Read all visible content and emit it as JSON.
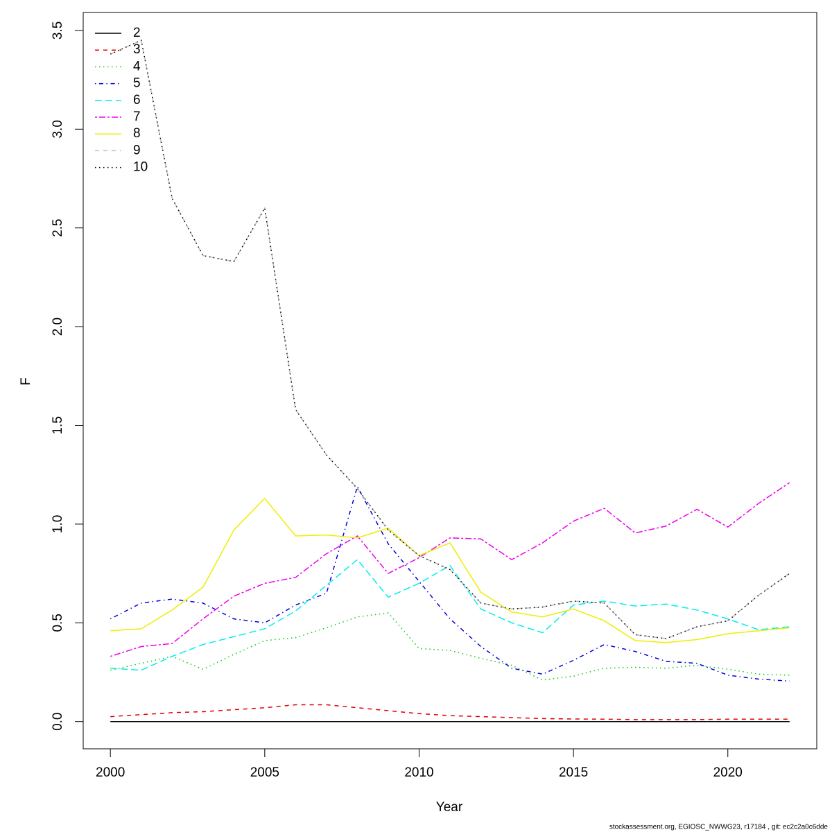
{
  "chart_data": {
    "type": "line",
    "x_label": "Year",
    "y_label": "F",
    "footer": "stockassessment.org, EGIOSC_NWWG23, r17184 , git: ec2c2a0c6dde",
    "x": [
      2000,
      2001,
      2002,
      2003,
      2004,
      2005,
      2006,
      2007,
      2008,
      2009,
      2010,
      2011,
      2012,
      2013,
      2014,
      2015,
      2016,
      2017,
      2018,
      2019,
      2020,
      2021,
      2022
    ],
    "xlim": [
      1999.12,
      2022.88
    ],
    "xticks": [
      2000,
      2005,
      2010,
      2015,
      2020
    ],
    "ylim": [
      -0.138,
      3.591
    ],
    "yticks": [
      {
        "value": 0,
        "label": "0.0"
      },
      0.5,
      {
        "value": 1,
        "label": "1.0"
      },
      1.5,
      {
        "value": 2,
        "label": "2.0"
      },
      2.5,
      {
        "value": 3,
        "label": "3.0"
      },
      3.5
    ],
    "legend": "top-left",
    "series": [
      {
        "name": "2",
        "color": "#000000",
        "linestyle": "solid",
        "values": [
          0,
          0,
          0,
          0,
          0,
          0,
          0,
          0,
          0,
          0,
          0,
          0,
          0,
          0,
          0,
          0,
          0,
          0,
          0,
          0,
          0,
          0,
          0
        ]
      },
      {
        "name": "3",
        "color": "#df0000",
        "linestyle": "dashed",
        "values": [
          0.025,
          0.035,
          0.045,
          0.05,
          0.06,
          0.07,
          0.085,
          0.085,
          0.07,
          0.055,
          0.04,
          0.03,
          0.025,
          0.02,
          0.015,
          0.013,
          0.012,
          0.01,
          0.01,
          0.01,
          0.012,
          0.012,
          0.012
        ]
      },
      {
        "name": "4",
        "color": "#00cd00",
        "linestyle": "dotted",
        "values": [
          0.26,
          0.295,
          0.33,
          0.265,
          0.34,
          0.41,
          0.425,
          0.475,
          0.53,
          0.55,
          0.37,
          0.36,
          0.32,
          0.285,
          0.21,
          0.23,
          0.27,
          0.275,
          0.27,
          0.285,
          0.265,
          0.24,
          0.235
        ]
      },
      {
        "name": "5",
        "color": "#0000df",
        "linestyle": "dotdash",
        "values": [
          0.52,
          0.6,
          0.62,
          0.6,
          0.52,
          0.5,
          0.59,
          0.65,
          1.19,
          0.9,
          0.71,
          0.52,
          0.38,
          0.27,
          0.24,
          0.31,
          0.39,
          0.355,
          0.305,
          0.295,
          0.235,
          0.215,
          0.205
        ]
      },
      {
        "name": "6",
        "color": "#00eeee",
        "linestyle": "longdash",
        "values": [
          0.27,
          0.26,
          0.33,
          0.39,
          0.43,
          0.47,
          0.56,
          0.69,
          0.82,
          0.63,
          0.7,
          0.79,
          0.57,
          0.5,
          0.45,
          0.59,
          0.61,
          0.585,
          0.595,
          0.565,
          0.52,
          0.465,
          0.48
        ]
      },
      {
        "name": "7",
        "color": "#ee00ee",
        "linestyle": "twodash",
        "values": [
          0.33,
          0.38,
          0.395,
          0.52,
          0.635,
          0.7,
          0.73,
          0.85,
          0.94,
          0.75,
          0.83,
          0.93,
          0.925,
          0.82,
          0.905,
          1.015,
          1.08,
          0.955,
          0.99,
          1.075,
          0.985,
          1.105,
          1.21
        ]
      },
      {
        "name": "8",
        "color": "#eeee00",
        "linestyle": "solid",
        "values": [
          0.46,
          0.47,
          0.565,
          0.68,
          0.97,
          1.13,
          0.94,
          0.945,
          0.93,
          0.98,
          0.84,
          0.905,
          0.655,
          0.555,
          0.53,
          0.57,
          0.51,
          0.41,
          0.4,
          0.415,
          0.445,
          0.46,
          0.475
        ]
      },
      {
        "name": "9",
        "color": "#bebebe",
        "linestyle": "dashed",
        "values": [
          3.38,
          3.45,
          2.65,
          2.36,
          2.33,
          2.6,
          1.58,
          1.35,
          1.18,
          0.97,
          0.84,
          0.77,
          0.6,
          0.57,
          0.58,
          0.61,
          0.6,
          0.44,
          0.42,
          0.48,
          0.51,
          0.64,
          0.75
        ]
      },
      {
        "name": "10",
        "color": "#000000",
        "linestyle": "dotted",
        "values": [
          3.38,
          3.45,
          2.65,
          2.36,
          2.33,
          2.6,
          1.58,
          1.35,
          1.18,
          0.97,
          0.84,
          0.77,
          0.6,
          0.57,
          0.58,
          0.61,
          0.6,
          0.44,
          0.42,
          0.48,
          0.51,
          0.64,
          0.75
        ]
      }
    ]
  }
}
